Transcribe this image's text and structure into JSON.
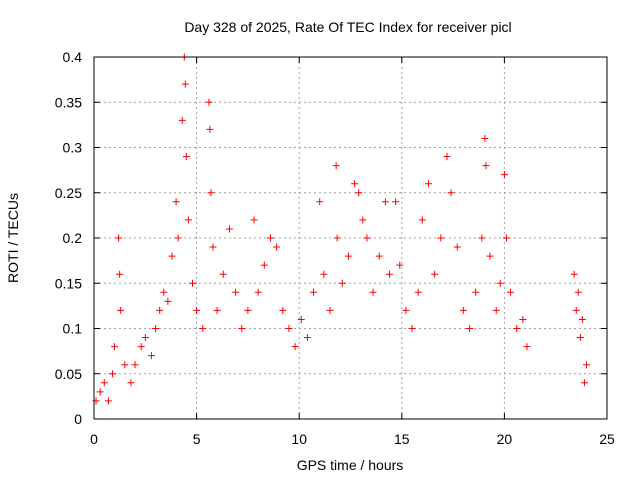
{
  "chart_data": {
    "type": "scatter",
    "title": "Day 328 of 2025, Rate Of TEC Index for receiver picl",
    "xlabel": "GPS time / hours",
    "ylabel": "ROTI / TECUs",
    "xlim": [
      0,
      25
    ],
    "ylim": [
      0,
      0.4
    ],
    "xticks": [
      0,
      5,
      10,
      15,
      20,
      25
    ],
    "xtick_labels": [
      "0",
      "5",
      "10",
      "15",
      "20",
      "25"
    ],
    "yticks": [
      0,
      0.05,
      0.1,
      0.15,
      0.2,
      0.25,
      0.3,
      0.35,
      0.4
    ],
    "ytick_labels": [
      "0",
      "0.05",
      "0.1",
      "0.15",
      "0.2",
      "0.25",
      "0.3",
      "0.35",
      "0.4"
    ],
    "grid": true,
    "marker": "+",
    "color": "#ff0000",
    "data_gaps_hours": [
      [
        21.2,
        23.4
      ]
    ],
    "series": [
      {
        "points": [
          [
            0.1,
            0.02
          ],
          [
            0.3,
            0.03
          ],
          [
            0.5,
            0.04
          ],
          [
            0.7,
            0.02
          ],
          [
            0.9,
            0.05
          ],
          [
            1.0,
            0.08
          ],
          [
            1.2,
            0.2
          ],
          [
            1.25,
            0.16
          ],
          [
            1.3,
            0.12
          ],
          [
            1.5,
            0.06
          ],
          [
            1.8,
            0.04
          ],
          [
            2.0,
            0.06
          ],
          [
            2.3,
            0.08
          ],
          [
            2.5,
            0.09
          ],
          [
            2.8,
            0.07
          ],
          [
            3.0,
            0.1
          ],
          [
            3.2,
            0.12
          ],
          [
            3.4,
            0.14
          ],
          [
            3.6,
            0.13
          ],
          [
            3.8,
            0.18
          ],
          [
            4.0,
            0.24
          ],
          [
            4.1,
            0.2
          ],
          [
            4.3,
            0.33
          ],
          [
            4.4,
            0.4
          ],
          [
            4.45,
            0.37
          ],
          [
            4.5,
            0.29
          ],
          [
            4.6,
            0.22
          ],
          [
            4.8,
            0.15
          ],
          [
            5.0,
            0.12
          ],
          [
            5.3,
            0.1
          ],
          [
            5.6,
            0.35
          ],
          [
            5.65,
            0.32
          ],
          [
            5.7,
            0.25
          ],
          [
            5.8,
            0.19
          ],
          [
            6.0,
            0.12
          ],
          [
            6.3,
            0.16
          ],
          [
            6.6,
            0.21
          ],
          [
            6.9,
            0.14
          ],
          [
            7.2,
            0.1
          ],
          [
            7.5,
            0.12
          ],
          [
            7.8,
            0.22
          ],
          [
            8.0,
            0.14
          ],
          [
            8.3,
            0.17
          ],
          [
            8.6,
            0.2
          ],
          [
            8.9,
            0.19
          ],
          [
            9.2,
            0.12
          ],
          [
            9.5,
            0.1
          ],
          [
            9.8,
            0.08
          ],
          [
            10.1,
            0.11
          ],
          [
            10.4,
            0.09
          ],
          [
            10.7,
            0.14
          ],
          [
            11.0,
            0.24
          ],
          [
            11.2,
            0.16
          ],
          [
            11.5,
            0.12
          ],
          [
            11.8,
            0.28
          ],
          [
            11.85,
            0.2
          ],
          [
            12.1,
            0.15
          ],
          [
            12.4,
            0.18
          ],
          [
            12.7,
            0.26
          ],
          [
            12.9,
            0.25
          ],
          [
            13.1,
            0.22
          ],
          [
            13.3,
            0.2
          ],
          [
            13.6,
            0.14
          ],
          [
            13.9,
            0.18
          ],
          [
            14.2,
            0.24
          ],
          [
            14.4,
            0.16
          ],
          [
            14.7,
            0.24
          ],
          [
            14.9,
            0.17
          ],
          [
            15.2,
            0.12
          ],
          [
            15.5,
            0.1
          ],
          [
            15.8,
            0.14
          ],
          [
            16.0,
            0.22
          ],
          [
            16.3,
            0.26
          ],
          [
            16.6,
            0.16
          ],
          [
            16.9,
            0.2
          ],
          [
            17.2,
            0.29
          ],
          [
            17.4,
            0.25
          ],
          [
            17.7,
            0.19
          ],
          [
            18.0,
            0.12
          ],
          [
            18.3,
            0.1
          ],
          [
            18.6,
            0.14
          ],
          [
            18.9,
            0.2
          ],
          [
            19.05,
            0.31
          ],
          [
            19.1,
            0.28
          ],
          [
            19.3,
            0.18
          ],
          [
            19.6,
            0.12
          ],
          [
            19.8,
            0.15
          ],
          [
            20.0,
            0.27
          ],
          [
            20.1,
            0.2
          ],
          [
            20.3,
            0.14
          ],
          [
            20.6,
            0.1
          ],
          [
            20.9,
            0.11
          ],
          [
            21.1,
            0.08
          ],
          [
            23.4,
            0.16
          ],
          [
            23.6,
            0.14
          ],
          [
            23.8,
            0.11
          ],
          [
            24.0,
            0.06
          ],
          [
            23.5,
            0.12
          ],
          [
            23.7,
            0.09
          ],
          [
            23.9,
            0.04
          ]
        ]
      }
    ]
  }
}
